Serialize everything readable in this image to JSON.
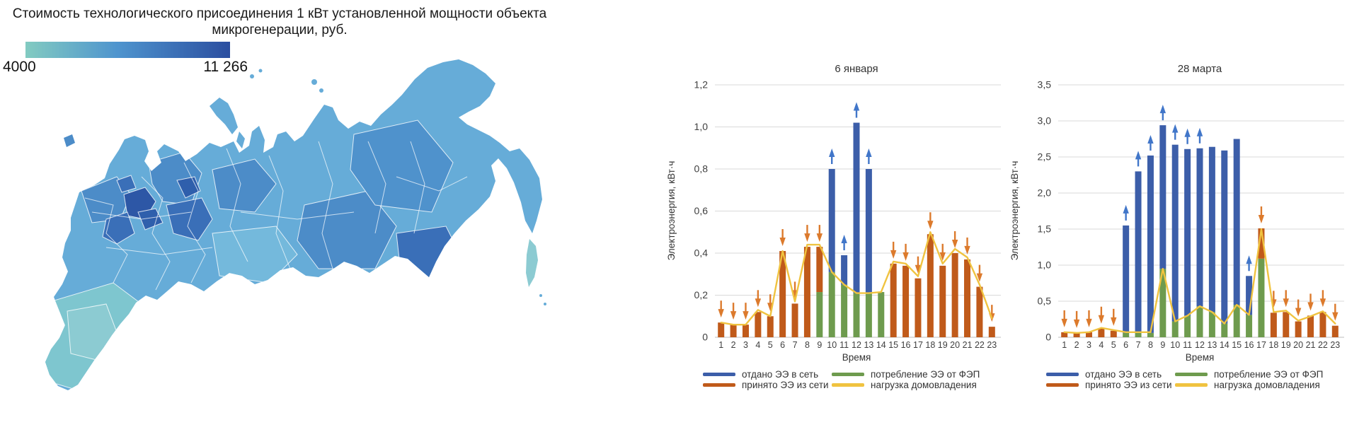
{
  "map": {
    "title_line1": "Стоимость технологического присоединения 1 кВт установленной мощности объекта",
    "title_line2": "микрогенерации, руб.",
    "colorbar": {
      "min_label": "4000",
      "max_label": "11 266",
      "gradient_start": "#82CBC1",
      "gradient_mid": "#4E94CE",
      "gradient_end": "#2B4EA0"
    },
    "region_palette": {
      "base": "#66ACD8",
      "teal": "#7EC6CF",
      "teal2": "#8CCBD2",
      "light": "#74B9DC",
      "med": "#4C8CC8",
      "med2": "#4F92CC",
      "dark": "#3A6FB8",
      "darker": "#2F5FAC",
      "darkest": "#2D57A6"
    }
  },
  "colors": {
    "export_blue": "#3C5EA9",
    "import_orange": "#C05A1A",
    "pv_green": "#6E9B4E",
    "load_yellow": "#F0C340",
    "arrow_blue": "#4176C9",
    "arrow_orange": "#DC7A2C"
  },
  "legend": {
    "items": [
      {
        "label": "отдано ЭЭ в сеть",
        "color_key": "export_blue"
      },
      {
        "label": "принято ЭЭ из сети",
        "color_key": "import_orange"
      },
      {
        "label": "потребление ЭЭ от ФЭП",
        "color_key": "pv_green"
      },
      {
        "label": "нагрузка домовладения",
        "color_key": "load_yellow"
      }
    ]
  },
  "chart_data": [
    {
      "type": "bar",
      "title": "6 января",
      "ylabel": "Электроэнергия, кВт·ч",
      "xlabel": "Время",
      "ylim": [
        0,
        1.2
      ],
      "ytick_labels": [
        "0",
        "0,2",
        "0,4",
        "0,6",
        "0,8",
        "1,0",
        "1,2"
      ],
      "categories": [
        "1",
        "2",
        "3",
        "4",
        "5",
        "6",
        "7",
        "8",
        "9",
        "10",
        "11",
        "12",
        "13",
        "14",
        "15",
        "16",
        "17",
        "18",
        "19",
        "20",
        "21",
        "22",
        "23"
      ],
      "series": [
        {
          "key": "export",
          "name": "отдано ЭЭ в сеть",
          "type": "bar",
          "color_key": "export_blue",
          "values": [
            null,
            null,
            null,
            null,
            null,
            null,
            null,
            null,
            null,
            0.8,
            0.39,
            1.02,
            0.8,
            null,
            null,
            null,
            null,
            null,
            null,
            null,
            null,
            null,
            null
          ]
        },
        {
          "key": "import",
          "name": "принято ЭЭ из сети",
          "type": "bar",
          "color_key": "import_orange",
          "values": [
            0.07,
            0.06,
            0.06,
            0.12,
            0.1,
            0.41,
            0.16,
            0.43,
            0.43,
            null,
            null,
            null,
            null,
            null,
            0.35,
            0.34,
            0.28,
            0.49,
            0.34,
            0.4,
            0.37,
            0.24,
            0.05
          ]
        },
        {
          "key": "pv",
          "name": "потребление ЭЭ от ФЭП",
          "type": "bar",
          "color_key": "pv_green",
          "values": [
            null,
            null,
            null,
            null,
            null,
            null,
            null,
            null,
            0.215,
            0.31,
            0.25,
            0.21,
            0.21,
            0.215,
            null,
            null,
            null,
            null,
            null,
            null,
            null,
            null,
            null
          ]
        },
        {
          "key": "load",
          "name": "нагрузка домовладения",
          "type": "line",
          "color_key": "load_yellow",
          "values": [
            0.07,
            0.06,
            0.06,
            0.13,
            0.1,
            0.41,
            0.17,
            0.44,
            0.44,
            0.31,
            0.25,
            0.21,
            0.21,
            0.215,
            0.36,
            0.35,
            0.29,
            0.5,
            0.35,
            0.42,
            0.38,
            0.25,
            0.09
          ]
        }
      ],
      "arrows": [
        "down",
        "down",
        "down",
        "down",
        "down",
        "down",
        "down",
        "down",
        "down",
        "up",
        "up",
        "up",
        "up",
        "none",
        "down",
        "down",
        "down",
        "down",
        "down",
        "down",
        "down",
        "down",
        "down"
      ]
    },
    {
      "type": "bar",
      "title": "28 марта",
      "ylabel": "Электроэнергия, кВт·ч",
      "xlabel": "Время",
      "ylim": [
        0,
        3.5
      ],
      "ytick_labels": [
        "0",
        "0,5",
        "1,0",
        "1,5",
        "2,0",
        "2,5",
        "3,0",
        "3,5"
      ],
      "categories": [
        "1",
        "2",
        "3",
        "4",
        "5",
        "6",
        "7",
        "8",
        "9",
        "10",
        "11",
        "12",
        "13",
        "14",
        "15",
        "16",
        "17",
        "18",
        "19",
        "20",
        "21",
        "22",
        "23"
      ],
      "series": [
        {
          "key": "export",
          "name": "отдано ЭЭ в сеть",
          "type": "bar",
          "color_key": "export_blue",
          "values": [
            null,
            null,
            null,
            null,
            null,
            1.55,
            2.3,
            2.52,
            2.94,
            2.67,
            2.61,
            2.62,
            2.64,
            2.59,
            2.75,
            0.85,
            null,
            null,
            null,
            null,
            null,
            null,
            null
          ]
        },
        {
          "key": "import",
          "name": "принято ЭЭ из сети",
          "type": "bar",
          "color_key": "import_orange",
          "values": [
            0.07,
            0.06,
            0.07,
            0.12,
            0.09,
            null,
            null,
            null,
            null,
            null,
            null,
            null,
            null,
            null,
            null,
            null,
            1.51,
            0.34,
            0.35,
            0.22,
            0.3,
            0.35,
            0.16
          ]
        },
        {
          "key": "pv",
          "name": "потребление ЭЭ от ФЭП",
          "type": "bar",
          "color_key": "pv_green",
          "values": [
            null,
            null,
            null,
            null,
            null,
            0.06,
            0.06,
            0.06,
            0.95,
            0.22,
            0.3,
            0.43,
            0.35,
            0.19,
            0.45,
            0.31,
            1.09,
            null,
            null,
            null,
            null,
            null,
            null
          ]
        },
        {
          "key": "load",
          "name": "нагрузка домовладения",
          "type": "line",
          "color_key": "load_yellow",
          "values": [
            0.07,
            0.06,
            0.07,
            0.13,
            0.1,
            0.07,
            0.07,
            0.07,
            0.95,
            0.22,
            0.3,
            0.43,
            0.35,
            0.19,
            0.45,
            0.31,
            1.5,
            0.35,
            0.37,
            0.23,
            0.29,
            0.36,
            0.19
          ]
        }
      ],
      "arrows": [
        "down",
        "down",
        "down",
        "down",
        "down",
        "up",
        "up",
        "up",
        "up",
        "up",
        "up",
        "up",
        "none",
        "none",
        "none",
        "up",
        "down",
        "down",
        "down",
        "down",
        "down",
        "down",
        "down"
      ]
    }
  ]
}
